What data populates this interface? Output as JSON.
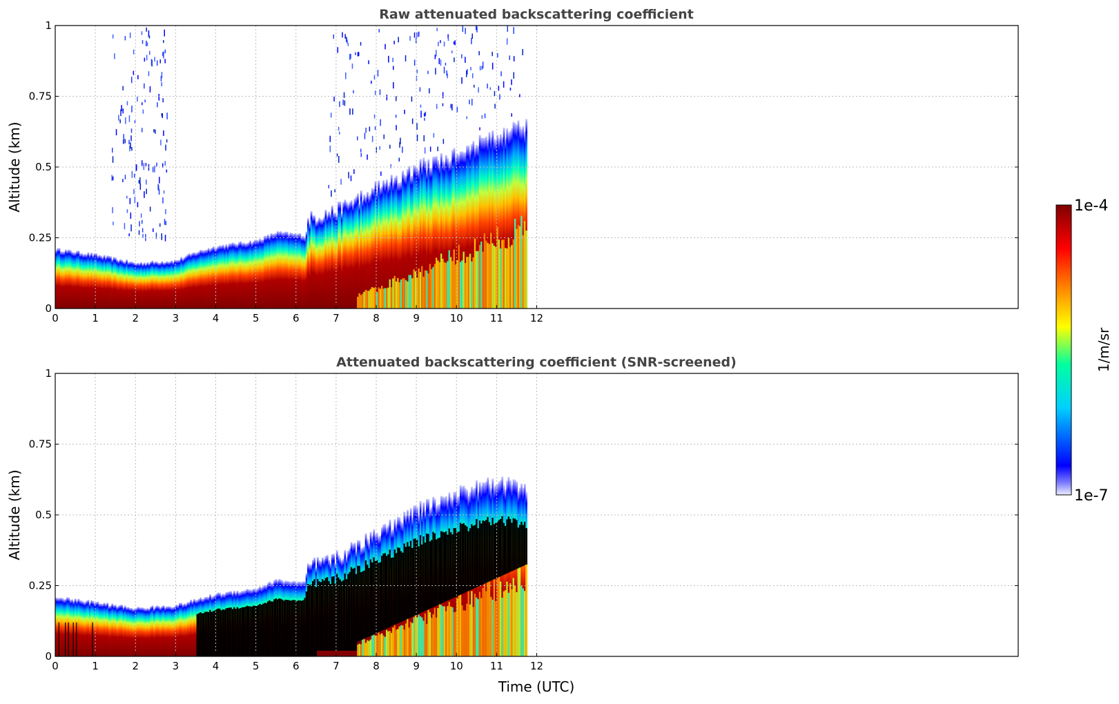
{
  "chart_data": [
    {
      "type": "heatmap",
      "title": "Raw attenuated backscattering coefficient",
      "xlabel": "",
      "ylabel": "Altitude (km)",
      "xlim": [
        0,
        24
      ],
      "ylim": [
        0,
        1
      ],
      "x_ticks": [
        "0",
        "1",
        "2",
        "3",
        "4",
        "5",
        "6",
        "7",
        "8",
        "9",
        "10",
        "11",
        "12"
      ],
      "y_ticks": [
        "0",
        "0.25",
        "0.5",
        "0.75",
        "1"
      ],
      "y_tick_values": [
        0,
        0.25,
        0.5,
        0.75,
        1
      ],
      "grid": true,
      "data_extent_hours": [
        0,
        11.75
      ],
      "layer_top_km": [
        {
          "t": 0,
          "top": 0.21
        },
        {
          "t": 1,
          "top": 0.19
        },
        {
          "t": 2,
          "top": 0.16
        },
        {
          "t": 3,
          "top": 0.17
        },
        {
          "t": 3.5,
          "top": 0.2
        },
        {
          "t": 4,
          "top": 0.22
        },
        {
          "t": 5,
          "top": 0.24
        },
        {
          "t": 5.5,
          "top": 0.27
        },
        {
          "t": 6.2,
          "top": 0.26
        },
        {
          "t": 6.3,
          "top": 0.32
        },
        {
          "t": 7,
          "top": 0.35
        },
        {
          "t": 8,
          "top": 0.43
        },
        {
          "t": 9,
          "top": 0.5
        },
        {
          "t": 10,
          "top": 0.55
        },
        {
          "t": 11,
          "top": 0.62
        },
        {
          "t": 11.75,
          "top": 0.65
        }
      ]
    },
    {
      "type": "heatmap",
      "title": "Attenuated backscattering coefficient (SNR-screened)",
      "xlabel": "Time (UTC)",
      "ylabel": "Altitude (km)",
      "xlim": [
        0,
        24
      ],
      "ylim": [
        0,
        1
      ],
      "x_ticks": [
        "0",
        "1",
        "2",
        "3",
        "4",
        "5",
        "6",
        "7",
        "8",
        "9",
        "10",
        "11",
        "12"
      ],
      "y_ticks": [
        "0",
        "0.25",
        "0.5",
        "0.75",
        "1"
      ],
      "y_tick_values": [
        0,
        0.25,
        0.5,
        0.75,
        1
      ],
      "grid": true,
      "data_extent_hours": [
        0,
        11.75
      ],
      "layer_top_km": [
        {
          "t": 0,
          "top": 0.21
        },
        {
          "t": 1,
          "top": 0.19
        },
        {
          "t": 2,
          "top": 0.17
        },
        {
          "t": 3,
          "top": 0.18
        },
        {
          "t": 3.5,
          "top": 0.2
        },
        {
          "t": 4,
          "top": 0.22
        },
        {
          "t": 5,
          "top": 0.24
        },
        {
          "t": 5.5,
          "top": 0.27
        },
        {
          "t": 6.2,
          "top": 0.26
        },
        {
          "t": 6.3,
          "top": 0.32
        },
        {
          "t": 7,
          "top": 0.35
        },
        {
          "t": 8,
          "top": 0.44
        },
        {
          "t": 9,
          "top": 0.52
        },
        {
          "t": 10,
          "top": 0.58
        },
        {
          "t": 11,
          "top": 0.62
        },
        {
          "t": 11.75,
          "top": 0.6
        }
      ],
      "saturated_region": "black"
    }
  ],
  "colorbar": {
    "label": "1/m/sr",
    "max_label": "1e-4",
    "min_label": "1e-7",
    "colors": [
      "#e8e8ff",
      "#0000ff",
      "#00c8ff",
      "#00ffc0",
      "#ffff00",
      "#ff8000",
      "#ff0000",
      "#800000"
    ]
  }
}
